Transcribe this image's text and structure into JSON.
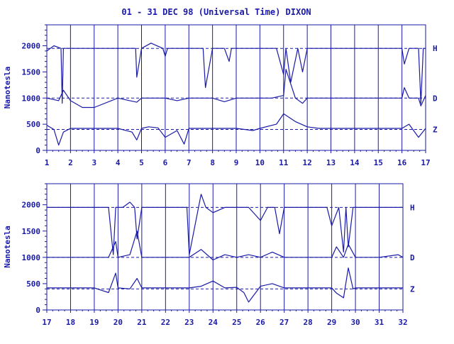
{
  "page_title": "01 - 31 DEC 98 (Universal Time) DIXON",
  "colors": {
    "ink": "#1a1aa6",
    "background": "#ffffff"
  },
  "chart_data": [
    {
      "type": "line",
      "ylabel": "Nanotesla",
      "xlim": [
        1,
        17
      ],
      "ylim": [
        0,
        2400
      ],
      "x_ticks": [
        "1",
        "2",
        "3",
        "4",
        "5",
        "6",
        "7",
        "8",
        "9",
        "10",
        "11",
        "12",
        "13",
        "14",
        "15",
        "16",
        "17"
      ],
      "y_ticks": [
        "0",
        "500",
        "1000",
        "1500",
        "2000"
      ],
      "grid": "vertical lines at each day",
      "series": [
        {
          "name": "H",
          "baseline": 1950,
          "x": [
            1,
            1.3,
            1.6,
            1.65,
            1.7,
            2,
            2.5,
            3,
            3.5,
            4,
            4.5,
            4.75,
            4.8,
            5,
            5.4,
            5.9,
            6,
            6.1,
            6.6,
            7,
            7.6,
            7.7,
            8,
            8.5,
            8.7,
            8.8,
            9,
            9.5,
            10,
            10.7,
            11,
            11.1,
            11.3,
            11.6,
            11.8,
            12,
            12.3,
            12.6,
            13,
            13.5,
            14,
            14.5,
            15,
            15.5,
            16,
            16.1,
            16.3,
            16.7,
            16.8,
            16.9,
            17
          ],
          "y": [
            1900,
            2000,
            1950,
            900,
            1950,
            1950,
            1950,
            1950,
            1950,
            1950,
            1950,
            1950,
            1400,
            1950,
            2050,
            1950,
            1800,
            1950,
            1950,
            1950,
            1950,
            1200,
            1950,
            1950,
            1700,
            1950,
            1950,
            1950,
            1950,
            1950,
            1450,
            1950,
            1300,
            1950,
            1500,
            1950,
            1950,
            1950,
            1950,
            1950,
            1950,
            1950,
            1950,
            1950,
            1950,
            1650,
            1950,
            1950,
            900,
            1950,
            1950
          ]
        },
        {
          "name": "D",
          "baseline": 1000,
          "x": [
            1,
            1.5,
            1.7,
            2,
            2.5,
            3,
            4,
            4.8,
            5,
            6,
            6.5,
            7,
            8,
            8.5,
            9,
            10,
            10.5,
            11,
            11.1,
            11.5,
            11.8,
            12,
            12.5,
            13,
            14,
            15,
            16,
            16.1,
            16.3,
            16.7,
            16.8,
            17
          ],
          "y": [
            1000,
            950,
            1150,
            950,
            820,
            820,
            1000,
            920,
            1000,
            1000,
            950,
            1000,
            1000,
            930,
            1000,
            1000,
            1000,
            1050,
            1550,
            1000,
            900,
            1000,
            1000,
            1000,
            1000,
            1000,
            1000,
            1200,
            1000,
            1000,
            850,
            1050
          ]
        },
        {
          "name": "Z",
          "baseline": 400,
          "x": [
            1,
            1.3,
            1.5,
            1.7,
            2,
            2.5,
            3,
            4,
            4.6,
            4.8,
            5,
            5.3,
            5.7,
            6,
            6.5,
            6.8,
            7,
            7.5,
            8,
            9,
            9.7,
            10,
            10.7,
            11,
            11.5,
            12,
            12.5,
            13,
            14,
            15,
            16,
            16.3,
            16.7,
            17
          ],
          "y": [
            480,
            400,
            100,
            350,
            420,
            420,
            420,
            420,
            350,
            200,
            420,
            450,
            430,
            250,
            380,
            120,
            420,
            420,
            420,
            420,
            380,
            420,
            500,
            700,
            550,
            450,
            420,
            420,
            420,
            420,
            420,
            500,
            250,
            420
          ]
        }
      ],
      "series_labels": [
        "H",
        "D",
        "Z"
      ]
    },
    {
      "type": "line",
      "ylabel": "Nanotesla",
      "xlim": [
        17,
        32
      ],
      "ylim": [
        0,
        2400
      ],
      "x_ticks": [
        "17",
        "18",
        "19",
        "20",
        "21",
        "22",
        "23",
        "24",
        "25",
        "26",
        "27",
        "28",
        "29",
        "30",
        "31",
        "32"
      ],
      "y_ticks": [
        "0",
        "500",
        "1000",
        "1500",
        "2000"
      ],
      "grid": "vertical lines at each day",
      "series": [
        {
          "name": "H",
          "baseline": 1950,
          "x": [
            17,
            18,
            19,
            19.6,
            19.8,
            19.9,
            20.2,
            20.5,
            20.7,
            20.8,
            21,
            22,
            22.5,
            22.9,
            23,
            23.5,
            23.7,
            24,
            24.5,
            24.7,
            25,
            25.5,
            26,
            26.3,
            26.6,
            26.8,
            27,
            27.5,
            28,
            28.8,
            29,
            29.3,
            29.5,
            29.6,
            29.7,
            29.9,
            30.2,
            30.5,
            31,
            31.5,
            32
          ],
          "y": [
            1950,
            1950,
            1950,
            1950,
            1050,
            1950,
            1950,
            2050,
            1950,
            1350,
            1950,
            1950,
            1950,
            1950,
            1050,
            2200,
            1950,
            1850,
            1950,
            1950,
            1950,
            1950,
            1700,
            1950,
            1950,
            1450,
            1950,
            1950,
            1950,
            1950,
            1600,
            1950,
            1100,
            1950,
            1200,
            1950,
            1950,
            1950,
            1950,
            1950,
            1950
          ]
        },
        {
          "name": "D",
          "baseline": 1000,
          "x": [
            17,
            18,
            19,
            19.6,
            19.9,
            20,
            20.5,
            20.8,
            21,
            22,
            23,
            23.5,
            24,
            24.5,
            25,
            25.5,
            26,
            26.5,
            27,
            28,
            29,
            29.2,
            29.5,
            29.7,
            30,
            30.5,
            31,
            31.8,
            32
          ],
          "y": [
            1000,
            1000,
            1000,
            1000,
            1300,
            1000,
            1050,
            1500,
            1000,
            1000,
            1000,
            1150,
            950,
            1050,
            1000,
            1050,
            1000,
            1100,
            1000,
            1000,
            1000,
            1200,
            1000,
            1250,
            1000,
            1000,
            1000,
            1050,
            1000
          ]
        },
        {
          "name": "Z",
          "baseline": 400,
          "x": [
            17,
            18,
            19,
            19.6,
            19.9,
            20,
            20.5,
            20.8,
            21,
            22,
            23,
            23.5,
            24,
            24.5,
            25,
            25.3,
            25.5,
            26,
            26.5,
            27,
            28,
            29,
            29.2,
            29.5,
            29.7,
            29.9,
            30,
            30.5,
            31,
            32
          ],
          "y": [
            420,
            420,
            420,
            330,
            700,
            420,
            400,
            600,
            420,
            420,
            420,
            450,
            550,
            420,
            430,
            330,
            150,
            450,
            500,
            420,
            420,
            420,
            320,
            230,
            800,
            400,
            420,
            420,
            420,
            420
          ]
        }
      ],
      "series_labels": [
        "H",
        "D",
        "Z"
      ]
    }
  ]
}
